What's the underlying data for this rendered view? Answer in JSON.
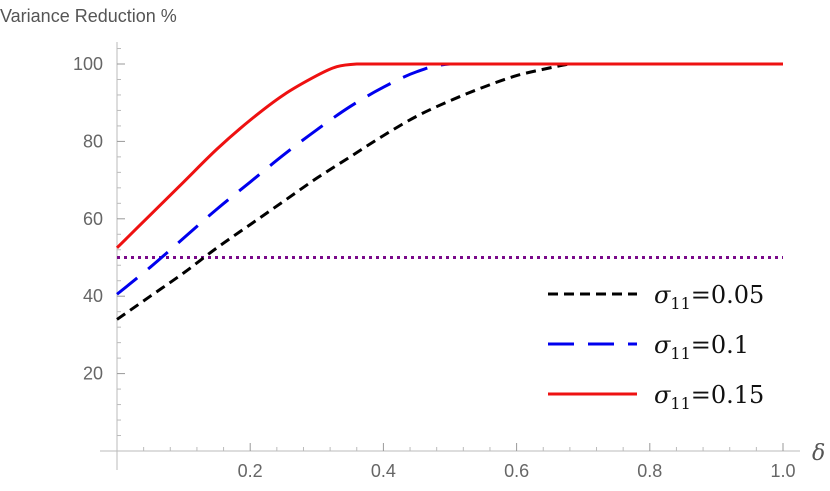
{
  "chart_data": {
    "type": "line",
    "title": "",
    "ylabel": "Variance Reduction %",
    "xlabel": "δ",
    "xlim": [
      0,
      1.0
    ],
    "ylim": [
      0,
      105
    ],
    "xticks": [
      0.2,
      0.4,
      0.6,
      0.8,
      1.0
    ],
    "xtick_labels": [
      "0.2",
      "0.4",
      "0.6",
      "0.8",
      "1.0"
    ],
    "yticks": [
      20,
      40,
      60,
      80,
      100
    ],
    "ytick_labels": [
      "20",
      "40",
      "60",
      "80",
      "100"
    ],
    "grid": false,
    "legend_position": "bottom-right",
    "series": [
      {
        "name": "σ11=0.05",
        "legend_symbol": "σ",
        "legend_sub": "11",
        "legend_value": "=0.05",
        "color": "#000000",
        "style": "dashed",
        "x": [
          0,
          0.05,
          0.1,
          0.15,
          0.2,
          0.25,
          0.3,
          0.35,
          0.4,
          0.45,
          0.5,
          0.55,
          0.6,
          0.65,
          0.68,
          0.7,
          0.8,
          0.9,
          1.0
        ],
        "y": [
          34,
          40,
          46,
          52.5,
          58.5,
          64.5,
          70.5,
          76,
          81.5,
          86.5,
          90.5,
          94,
          97,
          99,
          100,
          100,
          100,
          100,
          100
        ]
      },
      {
        "name": "σ11=0.1",
        "legend_symbol": "σ",
        "legend_sub": "11",
        "legend_value": "=0.1",
        "color": "#0000ee",
        "style": "longdash",
        "x": [
          0,
          0.05,
          0.1,
          0.15,
          0.2,
          0.25,
          0.3,
          0.35,
          0.4,
          0.45,
          0.5,
          0.6,
          0.7,
          0.8,
          0.9,
          1.0
        ],
        "y": [
          40.5,
          47.5,
          55,
          62.5,
          69.5,
          76.5,
          83,
          89,
          94,
          98,
          100,
          100,
          100,
          100,
          100,
          100
        ]
      },
      {
        "name": "σ11=0.15",
        "legend_symbol": "σ",
        "legend_sub": "11",
        "legend_value": "=0.15",
        "color": "#ee1111",
        "style": "solid",
        "x": [
          0,
          0.05,
          0.1,
          0.15,
          0.2,
          0.25,
          0.3,
          0.33,
          0.36,
          0.4,
          0.5,
          0.6,
          0.7,
          0.8,
          0.9,
          1.0
        ],
        "y": [
          52.5,
          61,
          69.5,
          78,
          85.5,
          92,
          97,
          99.3,
          100,
          100,
          100,
          100,
          100,
          100,
          100,
          100
        ]
      },
      {
        "color": "#7a0a8a",
        "style": "dotted",
        "legend": false,
        "x": [
          0,
          1.0
        ],
        "y": [
          50,
          50
        ]
      }
    ]
  }
}
